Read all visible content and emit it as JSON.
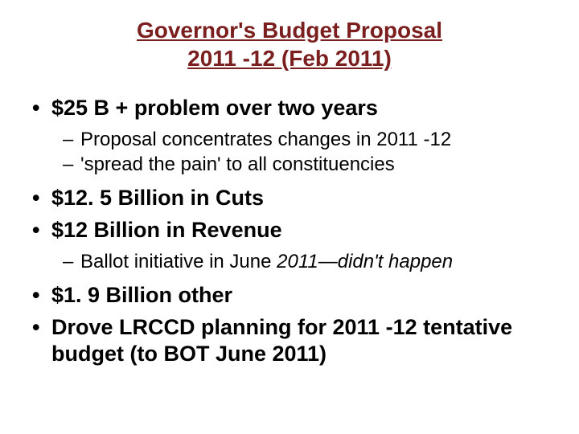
{
  "title": {
    "line1": "Governor's Budget Proposal",
    "line2": "2011 -12 (Feb 2011)",
    "color": "#7a1e1e",
    "fontsize": 28,
    "fontweight": "bold",
    "underline": true
  },
  "body": {
    "text_color": "#000000",
    "bullet_fontsize": 27,
    "sub_fontsize": 24,
    "bullets": [
      {
        "text": "$25 B + problem over two years",
        "subs": [
          {
            "text": "Proposal concentrates changes in 2011 -12"
          },
          {
            "text": "'spread the pain' to all constituencies"
          }
        ]
      },
      {
        "text": "$12. 5 Billion in Cuts",
        "subs": []
      },
      {
        "text": "$12 Billion in Revenue",
        "subs": [
          {
            "prefix": "Ballot initiative in June ",
            "italic": "2011—didn't happen"
          }
        ]
      },
      {
        "text": "$1. 9 Billion other",
        "subs": []
      },
      {
        "text": "Drove LRCCD planning for 2011 -12 tentative budget (to BOT June 2011)",
        "subs": []
      }
    ]
  },
  "background_color": "#ffffff"
}
